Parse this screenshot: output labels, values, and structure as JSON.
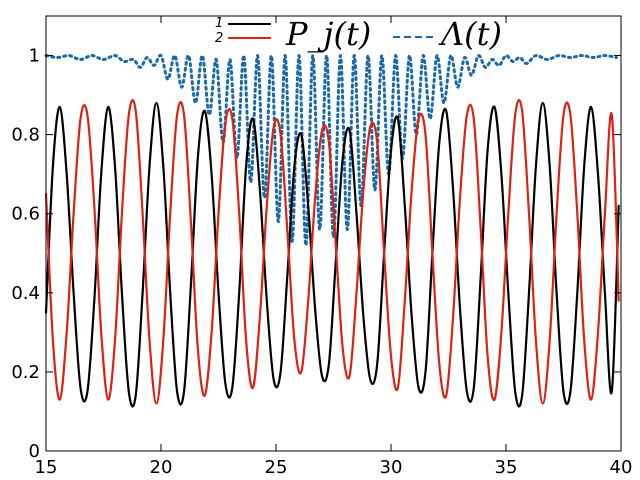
{
  "chart_data": {
    "type": "line",
    "xlim": [
      15,
      40
    ],
    "ylim": [
      0,
      1.1
    ],
    "x_ticks": [
      15,
      20,
      25,
      30,
      35,
      40
    ],
    "x_tick_labels": [
      "15",
      "20",
      "25",
      "30",
      "35",
      "40"
    ],
    "y_ticks": [
      0,
      0.2,
      0.4,
      0.6,
      0.8,
      1.0
    ],
    "y_tick_labels": [
      "0",
      "0.2",
      "0.4",
      "0.6",
      "0.8",
      "1"
    ],
    "grid": false,
    "legend_placement": "top",
    "legend": {
      "series_1_label": "1",
      "series_2_label": "2",
      "pj_label": "P_j(t)",
      "lambda_label": "Λ(t)"
    },
    "series": [
      {
        "name": "1",
        "color": "#000000",
        "style": "solid",
        "x": [
          15.0,
          15.3,
          15.6,
          15.9,
          16.2,
          16.5,
          16.8,
          17.1,
          17.4,
          17.7,
          18.0,
          18.3,
          18.6,
          18.9,
          19.2,
          19.5,
          19.8,
          20.1,
          20.4,
          20.7,
          21.0,
          21.3,
          21.6,
          21.9,
          22.2,
          22.5,
          22.8,
          23.1,
          23.4,
          23.7,
          24.0,
          24.3,
          24.6,
          24.9,
          25.2,
          25.5,
          25.8,
          26.1,
          26.4,
          26.7,
          27.0,
          27.3,
          27.6,
          27.9,
          28.2,
          28.5,
          28.8,
          29.1,
          29.4,
          29.7,
          30.0,
          30.3,
          30.6,
          30.9,
          31.2,
          31.5,
          31.8,
          32.1,
          32.4,
          32.7,
          33.0,
          33.3,
          33.6,
          33.9,
          34.2,
          34.5,
          34.8,
          35.1,
          35.4,
          35.7,
          36.0,
          36.3,
          36.6,
          36.9,
          37.2,
          37.5,
          37.8,
          38.1,
          38.4,
          38.7,
          39.0,
          39.3,
          39.6,
          39.9
        ],
        "y": [
          0.35,
          0.72,
          0.87,
          0.7,
          0.4,
          0.16,
          0.15,
          0.38,
          0.7,
          0.87,
          0.72,
          0.4,
          0.15,
          0.14,
          0.4,
          0.72,
          0.88,
          0.72,
          0.4,
          0.15,
          0.15,
          0.42,
          0.74,
          0.86,
          0.7,
          0.4,
          0.17,
          0.16,
          0.4,
          0.72,
          0.84,
          0.66,
          0.38,
          0.18,
          0.2,
          0.45,
          0.72,
          0.8,
          0.62,
          0.36,
          0.19,
          0.22,
          0.48,
          0.74,
          0.81,
          0.6,
          0.34,
          0.18,
          0.22,
          0.5,
          0.76,
          0.84,
          0.62,
          0.34,
          0.16,
          0.2,
          0.5,
          0.78,
          0.86,
          0.66,
          0.36,
          0.15,
          0.16,
          0.44,
          0.76,
          0.87,
          0.7,
          0.4,
          0.15,
          0.14,
          0.4,
          0.72,
          0.88,
          0.72,
          0.4,
          0.15,
          0.15,
          0.4,
          0.72,
          0.87,
          0.7,
          0.4,
          0.15,
          0.62
        ]
      },
      {
        "name": "2",
        "color": "#dd2211",
        "style": "solid",
        "x": [
          15.0,
          15.3,
          15.6,
          15.9,
          16.2,
          16.5,
          16.8,
          17.1,
          17.4,
          17.7,
          18.0,
          18.3,
          18.6,
          18.9,
          19.2,
          19.5,
          19.8,
          20.1,
          20.4,
          20.7,
          21.0,
          21.3,
          21.6,
          21.9,
          22.2,
          22.5,
          22.8,
          23.1,
          23.4,
          23.7,
          24.0,
          24.3,
          24.6,
          24.9,
          25.2,
          25.5,
          25.8,
          26.1,
          26.4,
          26.7,
          27.0,
          27.3,
          27.6,
          27.9,
          28.2,
          28.5,
          28.8,
          29.1,
          29.4,
          29.7,
          30.0,
          30.3,
          30.6,
          30.9,
          31.2,
          31.5,
          31.8,
          32.1,
          32.4,
          32.7,
          33.0,
          33.3,
          33.6,
          33.9,
          34.2,
          34.5,
          34.8,
          35.1,
          35.4,
          35.7,
          36.0,
          36.3,
          36.6,
          36.9,
          37.2,
          37.5,
          37.8,
          38.1,
          38.4,
          38.7,
          39.0,
          39.3,
          39.6,
          39.9
        ],
        "y": [
          0.65,
          0.28,
          0.13,
          0.3,
          0.6,
          0.84,
          0.85,
          0.62,
          0.3,
          0.13,
          0.28,
          0.6,
          0.85,
          0.86,
          0.6,
          0.28,
          0.12,
          0.28,
          0.6,
          0.85,
          0.85,
          0.58,
          0.26,
          0.14,
          0.3,
          0.6,
          0.83,
          0.84,
          0.6,
          0.28,
          0.16,
          0.34,
          0.62,
          0.82,
          0.8,
          0.55,
          0.28,
          0.2,
          0.38,
          0.64,
          0.81,
          0.78,
          0.52,
          0.26,
          0.19,
          0.4,
          0.66,
          0.82,
          0.78,
          0.5,
          0.24,
          0.16,
          0.38,
          0.66,
          0.84,
          0.8,
          0.5,
          0.22,
          0.14,
          0.34,
          0.64,
          0.85,
          0.84,
          0.56,
          0.24,
          0.13,
          0.3,
          0.6,
          0.85,
          0.86,
          0.6,
          0.28,
          0.12,
          0.28,
          0.6,
          0.85,
          0.85,
          0.6,
          0.28,
          0.13,
          0.3,
          0.6,
          0.85,
          0.38
        ]
      },
      {
        "name": "Λ(t)",
        "color": "#1a6aa8",
        "style": "dotted",
        "x": [
          15.0,
          15.5,
          16.0,
          16.5,
          17.0,
          17.5,
          18.0,
          18.4,
          18.8,
          19.1,
          19.4,
          19.7,
          20.0,
          20.3,
          20.6,
          20.9,
          21.2,
          21.5,
          21.8,
          22.1,
          22.4,
          22.7,
          23.0,
          23.3,
          23.6,
          23.9,
          24.2,
          24.5,
          24.8,
          25.1,
          25.4,
          25.7,
          26.0,
          26.3,
          26.6,
          26.9,
          27.2,
          27.5,
          27.8,
          28.1,
          28.4,
          28.7,
          29.0,
          29.3,
          29.6,
          29.9,
          30.2,
          30.5,
          30.8,
          31.1,
          31.4,
          31.7,
          32.0,
          32.3,
          32.6,
          32.9,
          33.2,
          33.5,
          33.8,
          34.1,
          34.4,
          34.7,
          35.0,
          35.3,
          35.6,
          35.9,
          36.3,
          36.8,
          37.3,
          37.8,
          38.3,
          38.8,
          39.3,
          39.8
        ],
        "y": [
          1.0,
          0.995,
          1.0,
          0.99,
          1.0,
          0.99,
          1.0,
          0.985,
          0.99,
          0.97,
          0.995,
          0.975,
          1.0,
          0.94,
          1.0,
          0.92,
          1.0,
          0.88,
          1.0,
          0.85,
          0.99,
          0.78,
          0.99,
          0.74,
          1.0,
          0.68,
          1.0,
          0.64,
          1.0,
          0.58,
          1.0,
          0.53,
          1.0,
          0.52,
          1.0,
          0.56,
          1.0,
          0.54,
          1.0,
          0.56,
          1.0,
          0.62,
          1.0,
          0.66,
          1.0,
          0.7,
          1.0,
          0.74,
          1.0,
          0.8,
          1.0,
          0.84,
          1.0,
          0.88,
          1.0,
          0.92,
          0.995,
          0.95,
          1.0,
          0.97,
          0.99,
          0.975,
          1.0,
          0.985,
          0.995,
          0.98,
          1.0,
          0.99,
          1.0,
          0.995,
          1.0,
          0.995,
          1.0,
          0.995
        ]
      }
    ]
  }
}
